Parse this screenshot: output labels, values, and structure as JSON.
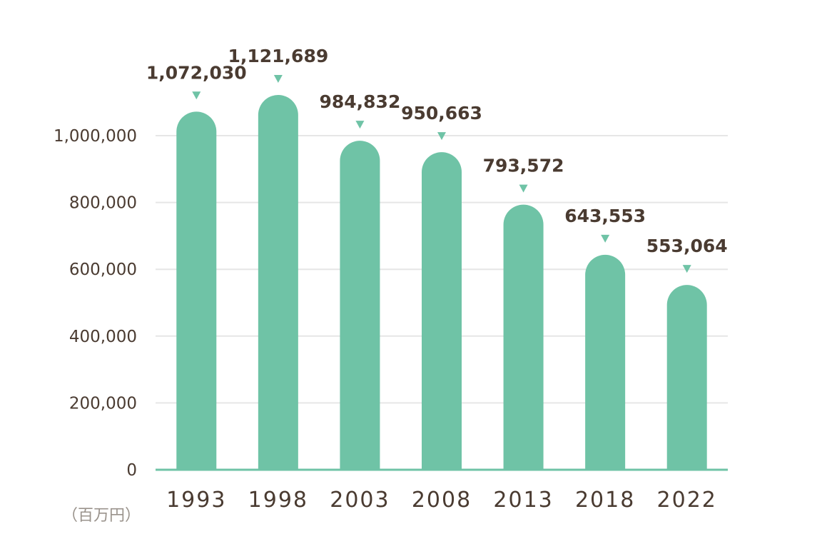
{
  "chart_data": {
    "type": "bar",
    "title": "",
    "xlabel": "",
    "ylabel": "",
    "unit": "（百万円）",
    "categories": [
      "1993",
      "1998",
      "2003",
      "2008",
      "2013",
      "2018",
      "2022"
    ],
    "values": [
      1072030,
      1121689,
      984832,
      950663,
      793572,
      643553,
      553064
    ],
    "value_labels": [
      "1,072,030",
      "1,121,689",
      "984,832",
      "950,663",
      "793,572",
      "643,553",
      "553,064"
    ],
    "ylim": [
      0,
      1000000
    ],
    "yticks": [
      0,
      200000,
      400000,
      600000,
      800000,
      1000000
    ],
    "ytick_labels": [
      "0",
      "200,000",
      "400,000",
      "600,000",
      "800,000",
      "1,000,000"
    ],
    "grid": true,
    "legend": "none",
    "colors": {
      "bar": "#6fc3a6",
      "marker": "#6fc3a6",
      "grid": "#e6e6e6",
      "axis": "#6fc3a6",
      "text": "#4a3b31",
      "unit_text": "#9a938c"
    }
  }
}
